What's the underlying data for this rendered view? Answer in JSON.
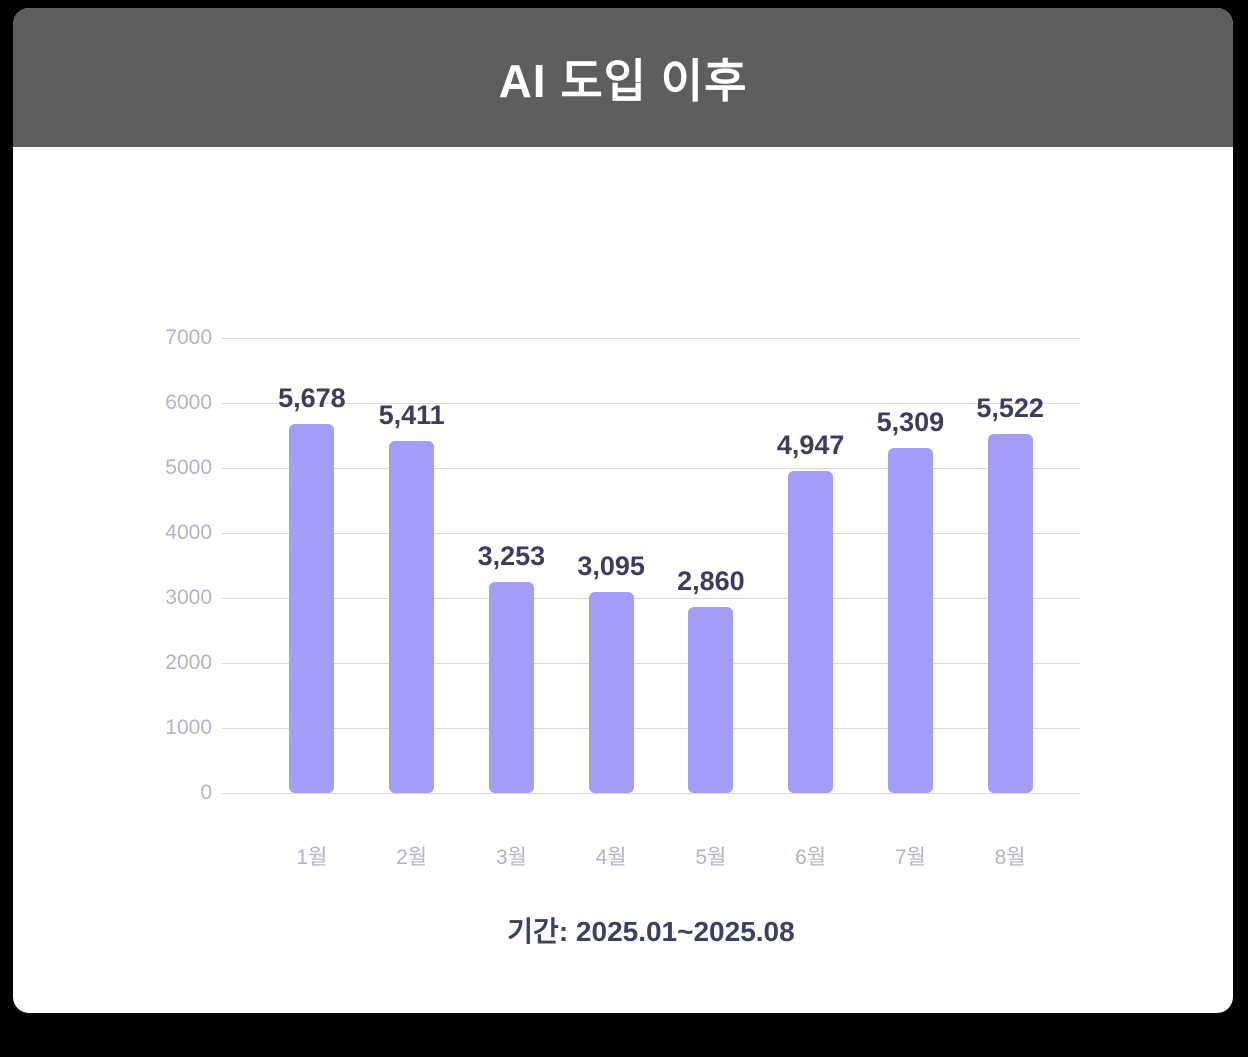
{
  "header": {
    "title": "AI 도입 이후",
    "background_color": "#5e5e5e",
    "text_color": "#ffffff"
  },
  "chart_data": {
    "type": "bar",
    "title": "AI 도입 이후",
    "categories": [
      "1월",
      "2월",
      "3월",
      "4월",
      "5월",
      "6월",
      "7월",
      "8월"
    ],
    "values": [
      5678,
      5411,
      3253,
      3095,
      2860,
      4947,
      5309,
      5522
    ],
    "value_labels": [
      "5,678",
      "5,411",
      "3,253",
      "3,095",
      "2,860",
      "4,947",
      "5,309",
      "5,522"
    ],
    "xlabel": "",
    "ylabel": "",
    "ylim": [
      0,
      7000
    ],
    "yticks": [
      0,
      1000,
      2000,
      3000,
      4000,
      5000,
      6000,
      7000
    ],
    "grid": true,
    "legend": false,
    "bar_color": "#a39df8",
    "gridline_color": "#d8d7e3",
    "tick_label_color": "#b4b2c8",
    "value_label_color": "#3e3d5e",
    "caption": "기간: 2025.01~2025.08"
  }
}
